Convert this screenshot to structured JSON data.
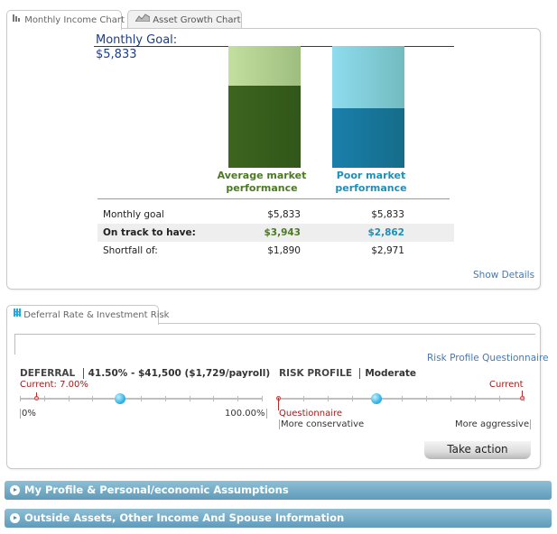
{
  "tabs": [
    {
      "label": "Monthly Income Chart",
      "icon": "bar-chart-icon",
      "active": true
    },
    {
      "label": "Asset Growth Chart",
      "icon": "area-chart-icon",
      "active": false
    }
  ],
  "chart": {
    "goal_label": "Monthly Goal:",
    "goal_value": "$5,833"
  },
  "chart_data": {
    "type": "bar",
    "categories": [
      "Average market performance",
      "Poor market performance"
    ],
    "series": [
      {
        "values": [
          3943,
          2862
        ],
        "colors": [
          "#3d651f",
          "#1a7fab"
        ]
      },
      {
        "values": [
          1890,
          2971
        ],
        "colors": [
          "#c4df9f",
          "#8fdcef"
        ]
      }
    ],
    "goal": 5833,
    "ylim": [
      0,
      5833
    ],
    "stacked": true
  },
  "bar_labels": [
    "Average market\nperformance",
    "Poor market\nperformance"
  ],
  "table": {
    "rows": [
      {
        "label": "Monthly goal",
        "avg": "$5,833",
        "poor": "$5,833",
        "highlight": false
      },
      {
        "label": "On track to have:",
        "avg": "$3,943",
        "poor": "$2,862",
        "highlight": true
      },
      {
        "label": "Shortfall of:",
        "avg": "$1,890",
        "poor": "$2,971",
        "highlight": false
      }
    ]
  },
  "colors": {
    "avg": "#4b7a22",
    "poor": "#1f8fb8",
    "link": "#4a78ad",
    "current": "#a01c1c"
  },
  "show_details": "Show Details",
  "deferral_tab": {
    "label": "Deferral Rate & Investment Risk",
    "icon": "sliders-icon"
  },
  "risk_profile_link": "Risk Profile Questionnaire",
  "deferral": {
    "label": "DEFERRAL",
    "value": "41.50% - $41,500 ($1,729/payroll)",
    "current": "Current: 7.00%",
    "min": "0%",
    "max": "100.00%",
    "level": 41.5,
    "current_level": 7
  },
  "risk": {
    "label": "RISK PROFILE",
    "value": "Moderate",
    "left_marker": "Questionnaire",
    "right_marker": "Current",
    "min": "More conservative",
    "max": "More aggressive"
  },
  "take_action": "Take action",
  "accordions": [
    "My Profile & Personal/economic Assumptions",
    "Outside Assets, Other Income And Spouse Information"
  ]
}
